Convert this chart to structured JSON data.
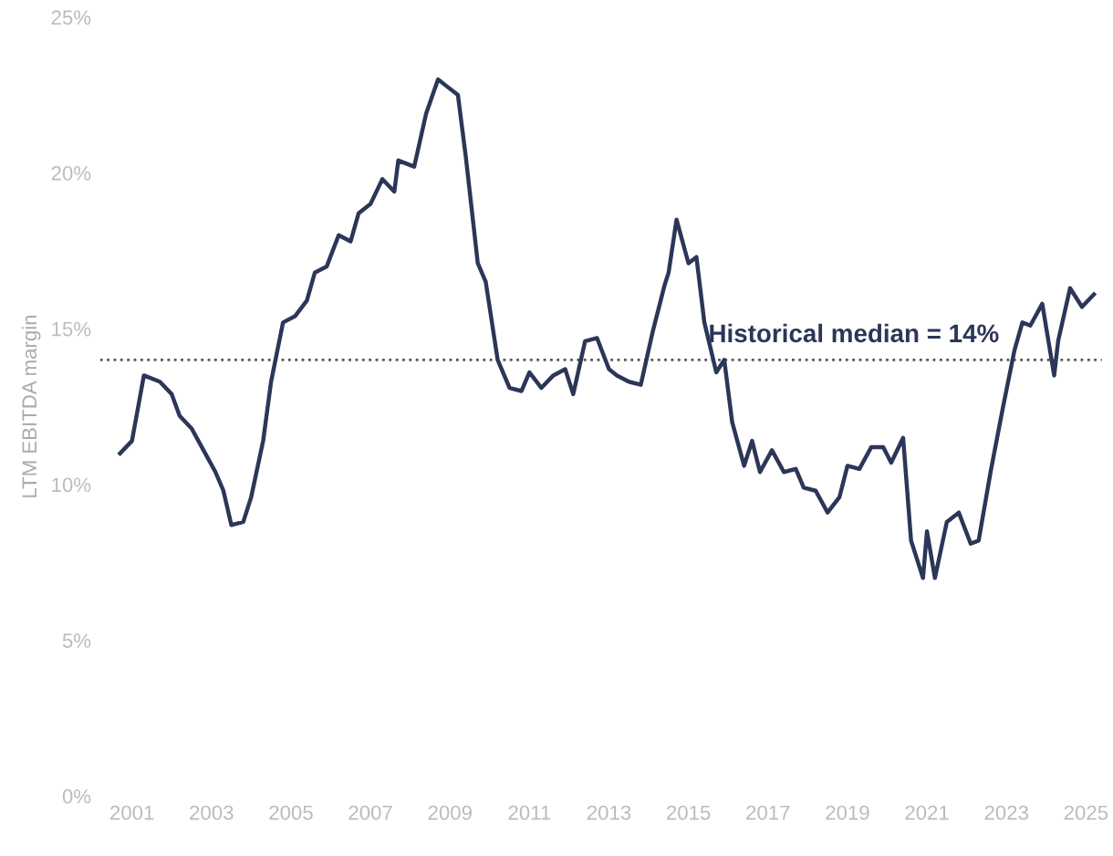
{
  "chart_data": {
    "type": "line",
    "ylabel": "LTM EBITDA margin",
    "x": [
      2000.7,
      2001.0,
      2001.3,
      2001.7,
      2002.0,
      2002.2,
      2002.5,
      2002.8,
      2003.1,
      2003.3,
      2003.5,
      2003.8,
      2004.0,
      2004.3,
      2004.5,
      2004.8,
      2005.1,
      2005.4,
      2005.6,
      2005.9,
      2006.2,
      2006.5,
      2006.7,
      2007.0,
      2007.3,
      2007.6,
      2007.7,
      2008.1,
      2008.4,
      2008.7,
      2008.9,
      2009.2,
      2009.4,
      2009.7,
      2009.9,
      2010.2,
      2010.5,
      2010.8,
      2011.0,
      2011.3,
      2011.6,
      2011.9,
      2012.1,
      2012.4,
      2012.7,
      2013.0,
      2013.2,
      2013.5,
      2013.8,
      2014.1,
      2014.4,
      2014.5,
      2014.7,
      2015.0,
      2015.2,
      2015.4,
      2015.7,
      2015.9,
      2016.1,
      2016.4,
      2016.6,
      2016.8,
      2017.1,
      2017.4,
      2017.7,
      2017.9,
      2018.2,
      2018.5,
      2018.8,
      2019.0,
      2019.3,
      2019.6,
      2019.9,
      2020.1,
      2020.4,
      2020.6,
      2020.9,
      2021.0,
      2021.2,
      2021.5,
      2021.8,
      2022.1,
      2022.3,
      2022.6,
      2022.9,
      2023.2,
      2023.4,
      2023.6,
      2023.9,
      2024.2,
      2024.3,
      2024.6,
      2024.9,
      2025.2
    ],
    "series": [
      {
        "color": "#2b3658",
        "values": [
          11.0,
          11.4,
          13.5,
          13.3,
          12.9,
          12.2,
          11.8,
          11.1,
          10.4,
          9.8,
          8.7,
          8.8,
          9.6,
          11.4,
          13.3,
          15.2,
          15.4,
          15.9,
          16.8,
          17.0,
          18.0,
          17.8,
          18.7,
          19.0,
          19.8,
          19.4,
          20.4,
          20.2,
          21.9,
          23.0,
          22.8,
          22.5,
          20.5,
          17.1,
          16.5,
          14.0,
          13.1,
          13.0,
          13.6,
          13.1,
          13.5,
          13.7,
          12.9,
          14.6,
          14.7,
          13.7,
          13.5,
          13.3,
          13.2,
          14.9,
          16.4,
          16.8,
          18.5,
          17.1,
          17.3,
          15.2,
          13.6,
          14.0,
          12.0,
          10.6,
          11.4,
          10.4,
          11.1,
          10.4,
          10.5,
          9.9,
          9.8,
          9.1,
          9.6,
          10.6,
          10.5,
          11.2,
          11.2,
          10.7,
          11.5,
          8.2,
          7.0,
          8.5,
          7.0,
          8.8,
          9.1,
          8.1,
          8.2,
          10.4,
          12.4,
          14.3,
          15.2,
          15.1,
          15.8,
          13.5,
          14.6,
          16.3,
          15.7,
          16.1
        ]
      }
    ],
    "xlim": [
      2000.2,
      2025.4
    ],
    "xticks": [
      2001,
      2003,
      2005,
      2007,
      2009,
      2011,
      2013,
      2015,
      2017,
      2019,
      2021,
      2023,
      2025
    ],
    "ylim": [
      0,
      25
    ],
    "yticks": [
      {
        "value": 0,
        "label": "0%"
      },
      {
        "value": 5,
        "label": "5%"
      },
      {
        "value": 10,
        "label": "10%"
      },
      {
        "value": 15,
        "label": "15%"
      },
      {
        "value": 20,
        "label": "20%"
      },
      {
        "value": 25,
        "label": "25%"
      }
    ],
    "ref_lines": [
      {
        "axis": "y",
        "value": 14,
        "label": "Historical median = 14%",
        "color": "#555555",
        "line_style": "dotted"
      }
    ],
    "grid": false,
    "legend": false,
    "marker": "none",
    "line_style": "solid"
  }
}
